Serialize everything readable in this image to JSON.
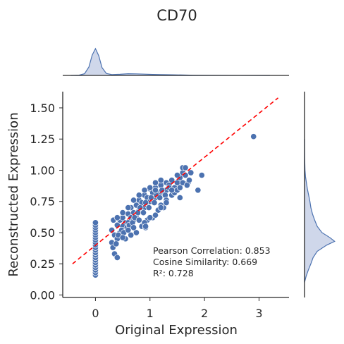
{
  "chart_data": {
    "type": "scatter",
    "title": "CD70",
    "xlabel": "Original Expression",
    "ylabel": "Reconstructed Expression",
    "xlim": [
      -0.6,
      3.55
    ],
    "ylim": [
      -0.02,
      1.63
    ],
    "x_ticks": [
      0,
      1,
      2,
      3
    ],
    "y_ticks": [
      0.0,
      0.25,
      0.5,
      0.75,
      1.0,
      1.25,
      1.5
    ],
    "x_tick_labels": [
      "0",
      "1",
      "2",
      "3"
    ],
    "y_tick_labels": [
      "0.00",
      "0.25",
      "0.50",
      "0.75",
      "1.00",
      "1.25",
      "1.50"
    ],
    "grid": false,
    "colors": {
      "points": "#4c72b0",
      "marginal_fill": "#c7d0e6",
      "marginal_line": "#4c72b0",
      "diagonal": "#ff0000"
    },
    "diagonal_line": {
      "from": [
        -0.42,
        0.25
      ],
      "to": [
        3.35,
        1.58
      ],
      "style": "dashed"
    },
    "annotations": [
      "Pearson Correlation: 0.853",
      "Cosine Similarity: 0.669",
      "R²: 0.728"
    ],
    "zero_column_y": [
      0.16,
      0.18,
      0.2,
      0.22,
      0.24,
      0.26,
      0.28,
      0.3,
      0.32,
      0.34,
      0.36,
      0.38,
      0.4,
      0.42,
      0.44,
      0.46,
      0.48,
      0.5,
      0.52,
      0.54,
      0.56,
      0.58
    ],
    "points": [
      [
        0.3,
        0.42
      ],
      [
        0.35,
        0.48
      ],
      [
        0.3,
        0.52
      ],
      [
        0.4,
        0.56
      ],
      [
        0.45,
        0.6
      ],
      [
        0.5,
        0.62
      ],
      [
        0.55,
        0.58
      ],
      [
        0.6,
        0.65
      ],
      [
        0.65,
        0.7
      ],
      [
        0.7,
        0.66
      ],
      [
        0.75,
        0.72
      ],
      [
        0.8,
        0.76
      ],
      [
        0.85,
        0.7
      ],
      [
        0.9,
        0.8
      ],
      [
        0.95,
        0.78
      ],
      [
        1.0,
        0.85
      ],
      [
        1.05,
        0.82
      ],
      [
        1.1,
        0.86
      ],
      [
        1.15,
        0.8
      ],
      [
        1.2,
        0.88
      ],
      [
        1.25,
        0.84
      ],
      [
        1.3,
        0.9
      ],
      [
        1.35,
        0.88
      ],
      [
        1.4,
        0.92
      ],
      [
        1.45,
        0.86
      ],
      [
        1.5,
        0.9
      ],
      [
        1.55,
        0.94
      ],
      [
        1.6,
        0.98
      ],
      [
        1.65,
        0.96
      ],
      [
        1.7,
        0.9
      ],
      [
        0.4,
        0.45
      ],
      [
        0.45,
        0.5
      ],
      [
        0.5,
        0.55
      ],
      [
        0.55,
        0.52
      ],
      [
        0.6,
        0.58
      ],
      [
        0.65,
        0.62
      ],
      [
        0.7,
        0.6
      ],
      [
        0.75,
        0.64
      ],
      [
        0.8,
        0.68
      ],
      [
        0.85,
        0.74
      ],
      [
        0.9,
        0.7
      ],
      [
        0.95,
        0.72
      ],
      [
        1.0,
        0.75
      ],
      [
        1.05,
        0.76
      ],
      [
        1.1,
        0.78
      ],
      [
        1.15,
        0.82
      ],
      [
        1.2,
        0.8
      ],
      [
        1.25,
        0.82
      ],
      [
        1.3,
        0.84
      ],
      [
        1.35,
        0.86
      ],
      [
        0.32,
        0.38
      ],
      [
        0.38,
        0.41
      ],
      [
        0.42,
        0.48
      ],
      [
        0.48,
        0.52
      ],
      [
        0.52,
        0.5
      ],
      [
        0.58,
        0.54
      ],
      [
        0.62,
        0.56
      ],
      [
        0.68,
        0.58
      ],
      [
        0.72,
        0.62
      ],
      [
        0.78,
        0.66
      ],
      [
        0.82,
        0.7
      ],
      [
        0.88,
        0.66
      ],
      [
        0.92,
        0.74
      ],
      [
        0.98,
        0.7
      ],
      [
        1.02,
        0.78
      ],
      [
        1.08,
        0.74
      ],
      [
        1.12,
        0.8
      ],
      [
        1.18,
        0.78
      ],
      [
        1.22,
        0.84
      ],
      [
        1.28,
        0.8
      ],
      [
        0.33,
        0.6
      ],
      [
        0.4,
        0.62
      ],
      [
        0.5,
        0.66
      ],
      [
        0.6,
        0.7
      ],
      [
        0.7,
        0.76
      ],
      [
        0.8,
        0.8
      ],
      [
        0.9,
        0.84
      ],
      [
        1.0,
        0.86
      ],
      [
        1.1,
        0.9
      ],
      [
        1.2,
        0.92
      ],
      [
        0.35,
        0.33
      ],
      [
        0.4,
        0.3
      ],
      [
        0.55,
        0.45
      ],
      [
        0.65,
        0.48
      ],
      [
        0.75,
        0.5
      ],
      [
        0.85,
        0.55
      ],
      [
        0.95,
        0.6
      ],
      [
        1.05,
        0.62
      ],
      [
        1.15,
        0.68
      ],
      [
        1.25,
        0.7
      ],
      [
        0.9,
        0.58
      ],
      [
        0.92,
        0.54
      ],
      [
        1.0,
        0.62
      ],
      [
        1.1,
        0.64
      ],
      [
        1.2,
        0.72
      ],
      [
        1.3,
        0.76
      ],
      [
        1.4,
        0.8
      ],
      [
        1.45,
        0.82
      ],
      [
        1.5,
        0.84
      ],
      [
        1.55,
        0.86
      ],
      [
        1.6,
        1.02
      ],
      [
        1.65,
        1.02
      ],
      [
        1.75,
        0.98
      ],
      [
        1.5,
        0.96
      ],
      [
        1.4,
        0.84
      ],
      [
        1.3,
        0.74
      ],
      [
        1.2,
        0.7
      ],
      [
        1.6,
        0.9
      ],
      [
        1.68,
        0.88
      ],
      [
        1.72,
        0.92
      ],
      [
        1.55,
        0.78
      ],
      [
        1.88,
        0.84
      ],
      [
        1.95,
        0.96
      ],
      [
        2.9,
        1.27
      ],
      [
        0.92,
        0.55
      ],
      [
        1.1,
        0.84
      ],
      [
        0.6,
        0.52
      ],
      [
        0.7,
        0.54
      ],
      [
        0.8,
        0.6
      ],
      [
        0.5,
        0.46
      ]
    ],
    "top_density": [
      [
        -0.45,
        0.0
      ],
      [
        -0.3,
        0.01
      ],
      [
        -0.2,
        0.06
      ],
      [
        -0.12,
        0.3
      ],
      [
        -0.06,
        0.72
      ],
      [
        0.0,
        0.95
      ],
      [
        0.06,
        0.7
      ],
      [
        0.12,
        0.28
      ],
      [
        0.2,
        0.07
      ],
      [
        0.3,
        0.03
      ],
      [
        0.45,
        0.04
      ],
      [
        0.6,
        0.06
      ],
      [
        0.75,
        0.055
      ],
      [
        0.9,
        0.045
      ],
      [
        1.05,
        0.035
      ],
      [
        1.2,
        0.03
      ],
      [
        1.4,
        0.022
      ],
      [
        1.6,
        0.016
      ],
      [
        1.8,
        0.008
      ],
      [
        2.1,
        0.003
      ],
      [
        2.6,
        0.001
      ],
      [
        3.2,
        0.0
      ]
    ],
    "right_density": [
      [
        0.1,
        0.0
      ],
      [
        0.15,
        0.05
      ],
      [
        0.2,
        0.12
      ],
      [
        0.25,
        0.2
      ],
      [
        0.3,
        0.27
      ],
      [
        0.35,
        0.4
      ],
      [
        0.4,
        0.7
      ],
      [
        0.43,
        0.95
      ],
      [
        0.46,
        0.8
      ],
      [
        0.5,
        0.55
      ],
      [
        0.55,
        0.4
      ],
      [
        0.6,
        0.32
      ],
      [
        0.65,
        0.25
      ],
      [
        0.7,
        0.2
      ],
      [
        0.75,
        0.17
      ],
      [
        0.8,
        0.13
      ],
      [
        0.85,
        0.09
      ],
      [
        0.9,
        0.06
      ],
      [
        0.95,
        0.03
      ],
      [
        1.0,
        0.015
      ],
      [
        1.1,
        0.005
      ],
      [
        1.25,
        0.0
      ]
    ]
  }
}
